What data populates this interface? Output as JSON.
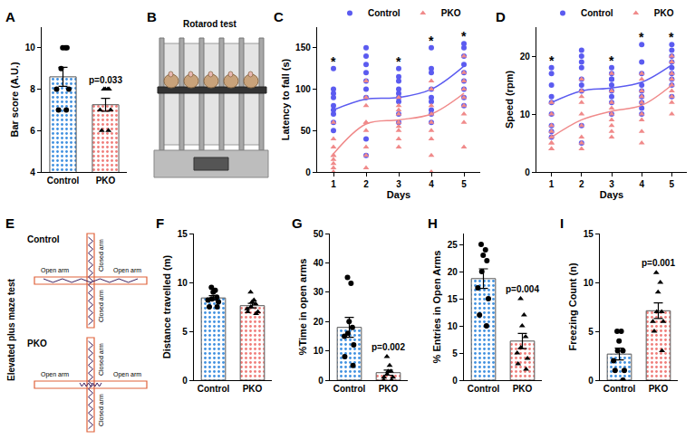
{
  "chart_data": [
    {
      "panel": "A",
      "type": "bar",
      "y_label": "Bar score (A.U.)",
      "ylim": [
        4,
        11
      ],
      "yticks": [
        4,
        6,
        8,
        10
      ],
      "grid": false,
      "series": [
        {
          "name": "Control",
          "color": "#3d8fe0",
          "marker": "circle",
          "value": 8.6,
          "error": 0.46,
          "points": [
            10,
            10,
            10,
            9,
            8,
            8,
            7,
            7
          ]
        },
        {
          "name": "PKO",
          "color": "#f07b78",
          "marker": "triangle-up",
          "value": 7.25,
          "error": 0.31,
          "points": [
            8,
            8,
            8,
            8,
            7,
            7,
            6,
            6
          ]
        }
      ],
      "annotations": [
        {
          "category": "PKO",
          "text": "p=0.033"
        }
      ]
    },
    {
      "panel": "B",
      "type": "diagram",
      "title": "Rotarod test"
    },
    {
      "panel": "C",
      "type": "scatter",
      "x_label": "Days",
      "y_label": "Latency to fall (s)",
      "x": [
        1,
        2,
        3,
        4,
        5
      ],
      "xlim": [
        0.5,
        5.5
      ],
      "xticks": [
        1,
        2,
        3,
        4,
        5
      ],
      "ylim": [
        0,
        175
      ],
      "yticks": [
        0,
        50,
        100,
        150
      ],
      "grid": false,
      "legend": "top",
      "series": [
        {
          "name": "Control",
          "color": "#5b5bf0",
          "marker": "circle",
          "values": [
            [
              125,
              95,
              90,
              80,
              75,
              70,
              60,
              50,
              100
            ],
            [
              150,
              140,
              120,
              110,
              100,
              90,
              40,
              20,
              130
            ],
            [
              125,
              115,
              100,
              95,
              90,
              85,
              70,
              60,
              110
            ],
            [
              150,
              125,
              120,
              100,
              90,
              85,
              75,
              70,
              60
            ],
            [
              155,
              150,
              140,
              130,
              120,
              110,
              100,
              90,
              80
            ]
          ],
          "trend": [
            75,
            88,
            90,
            100,
            128
          ]
        },
        {
          "name": "PKO",
          "color": "#f08a8a",
          "marker": "triangle-up",
          "values": [
            [
              60,
              40,
              30,
              20,
              15,
              10,
              5,
              20,
              0
            ],
            [
              110,
              90,
              80,
              60,
              50,
              30,
              20,
              60,
              5
            ],
            [
              90,
              80,
              75,
              70,
              60,
              55,
              40,
              30,
              50
            ],
            [
              110,
              100,
              80,
              60,
              50,
              40,
              20,
              0,
              70
            ],
            [
              140,
              120,
              110,
              100,
              90,
              80,
              70,
              60,
              30
            ]
          ],
          "trend": [
            22,
            58,
            63,
            70,
            95
          ]
        }
      ],
      "annotations": [
        {
          "x": 1,
          "text": "*"
        },
        {
          "x": 3,
          "text": "*"
        },
        {
          "x": 4,
          "text": "*"
        },
        {
          "x": 5,
          "text": "*"
        }
      ]
    },
    {
      "panel": "D",
      "type": "scatter",
      "x_label": "Days",
      "y_label": "Speed (rpm)",
      "x": [
        1,
        2,
        3,
        4,
        5
      ],
      "xlim": [
        0.5,
        5.5
      ],
      "xticks": [
        1,
        2,
        3,
        4,
        5
      ],
      "ylim": [
        0,
        25
      ],
      "yticks": [
        0,
        10,
        20
      ],
      "grid": false,
      "legend": "top",
      "series": [
        {
          "name": "Control",
          "color": "#5b5bf0",
          "marker": "circle",
          "values": [
            [
              18,
              15,
              13,
              12,
              10,
              8,
              7,
              6,
              17
            ],
            [
              21,
              20,
              18,
              16,
              15,
              14,
              8,
              5,
              19
            ],
            [
              18,
              17,
              16,
              15,
              14,
              13,
              12,
              10,
              16
            ],
            [
              22,
              19,
              17,
              15,
              14,
              13,
              12,
              11,
              10
            ],
            [
              22,
              21,
              20,
              19,
              18,
              17,
              16,
              15,
              13
            ]
          ],
          "trend": [
            12,
            14,
            14.5,
            15.5,
            18.5
          ]
        },
        {
          "name": "PKO",
          "color": "#f08a8a",
          "marker": "triangle-up",
          "values": [
            [
              10,
              8,
              7,
              6,
              5,
              5,
              4,
              4,
              12
            ],
            [
              16,
              14,
              12,
              10,
              8,
              6,
              5,
              4,
              13
            ],
            [
              17,
              14,
              12,
              10,
              9,
              8,
              7,
              6,
              11
            ],
            [
              17,
              16,
              13,
              12,
              10,
              9,
              7,
              5,
              14
            ],
            [
              20,
              19,
              17,
              16,
              15,
              14,
              12,
              10,
              13
            ]
          ],
          "trend": [
            6,
            9,
            10.5,
            11.5,
            15
          ]
        }
      ],
      "annotations": [
        {
          "x": 1,
          "text": "*"
        },
        {
          "x": 3,
          "text": "*"
        },
        {
          "x": 4,
          "text": "*"
        },
        {
          "x": 5,
          "text": "*"
        }
      ]
    },
    {
      "panel": "E",
      "type": "diagram",
      "title": "Elevated plus maze test",
      "mazes": [
        {
          "label": "Control"
        },
        {
          "label": "PKO"
        }
      ],
      "closed_arm": "Closed arm",
      "open_arm": "Open arm"
    },
    {
      "panel": "F",
      "type": "bar",
      "y_label": "Distance travelled (m)",
      "ylim": [
        0,
        15
      ],
      "yticks": [
        0,
        5,
        10,
        15
      ],
      "grid": false,
      "series": [
        {
          "name": "Control",
          "color": "#3d8fe0",
          "marker": "circle",
          "value": 8.41,
          "error": 0.23,
          "points": [
            9.5,
            9.2,
            9,
            8.5,
            8.3,
            8,
            7.5,
            7.5,
            8.2
          ]
        },
        {
          "name": "PKO",
          "color": "#f07b78",
          "marker": "triangle-up",
          "value": 7.62,
          "error": 0.23,
          "points": [
            9,
            8.2,
            8,
            7.8,
            7.5,
            7.3,
            7,
            6.8,
            7
          ]
        }
      ]
    },
    {
      "panel": "G",
      "type": "bar",
      "y_label": "%Time in open arms",
      "ylim": [
        0,
        50
      ],
      "yticks": [
        0,
        10,
        20,
        30,
        40,
        50
      ],
      "grid": false,
      "series": [
        {
          "name": "Control",
          "color": "#3d8fe0",
          "marker": "circle",
          "value": 18,
          "error": 3.4,
          "points": [
            35,
            33,
            20,
            18,
            15,
            12,
            8,
            5,
            16
          ]
        },
        {
          "name": "PKO",
          "color": "#f07b78",
          "marker": "triangle-up",
          "value": 2.56,
          "error": 0.86,
          "points": [
            8,
            5,
            3,
            2,
            1,
            1,
            0,
            0,
            3
          ]
        }
      ],
      "annotations": [
        {
          "category": "PKO",
          "text": "p=0.002"
        }
      ]
    },
    {
      "panel": "H",
      "type": "bar",
      "y_label": "% Entries in Open Arms",
      "ylim": [
        0,
        27
      ],
      "yticks": [
        0,
        5,
        10,
        15,
        20,
        25
      ],
      "grid": false,
      "series": [
        {
          "name": "Control",
          "color": "#3d8fe0",
          "marker": "circle",
          "value": 18.7,
          "error": 1.8,
          "points": [
            25,
            24,
            23,
            22,
            20,
            17,
            15,
            12,
            10
          ]
        },
        {
          "name": "PKO",
          "color": "#f07b78",
          "marker": "triangle-up",
          "value": 7.2,
          "error": 1.4,
          "points": [
            15,
            12,
            8,
            6,
            5,
            4,
            3,
            2,
            10
          ]
        }
      ],
      "annotations": [
        {
          "category": "PKO",
          "text": "p=0.004"
        }
      ]
    },
    {
      "panel": "I",
      "type": "bar",
      "y_label": "Freezing Count (n)",
      "ylim": [
        0,
        15
      ],
      "yticks": [
        0,
        5,
        10,
        15
      ],
      "grid": false,
      "series": [
        {
          "name": "Control",
          "color": "#3d8fe0",
          "marker": "circle",
          "value": 2.67,
          "error": 0.6,
          "points": [
            5,
            5,
            4,
            3,
            3,
            2,
            1,
            1,
            0
          ]
        },
        {
          "name": "PKO",
          "color": "#f07b78",
          "marker": "triangle-up",
          "value": 7.1,
          "error": 0.8,
          "points": [
            11,
            10,
            9,
            7,
            7,
            6,
            6,
            5,
            3
          ]
        }
      ],
      "annotations": [
        {
          "category": "PKO",
          "text": "p=0.001"
        }
      ]
    }
  ]
}
